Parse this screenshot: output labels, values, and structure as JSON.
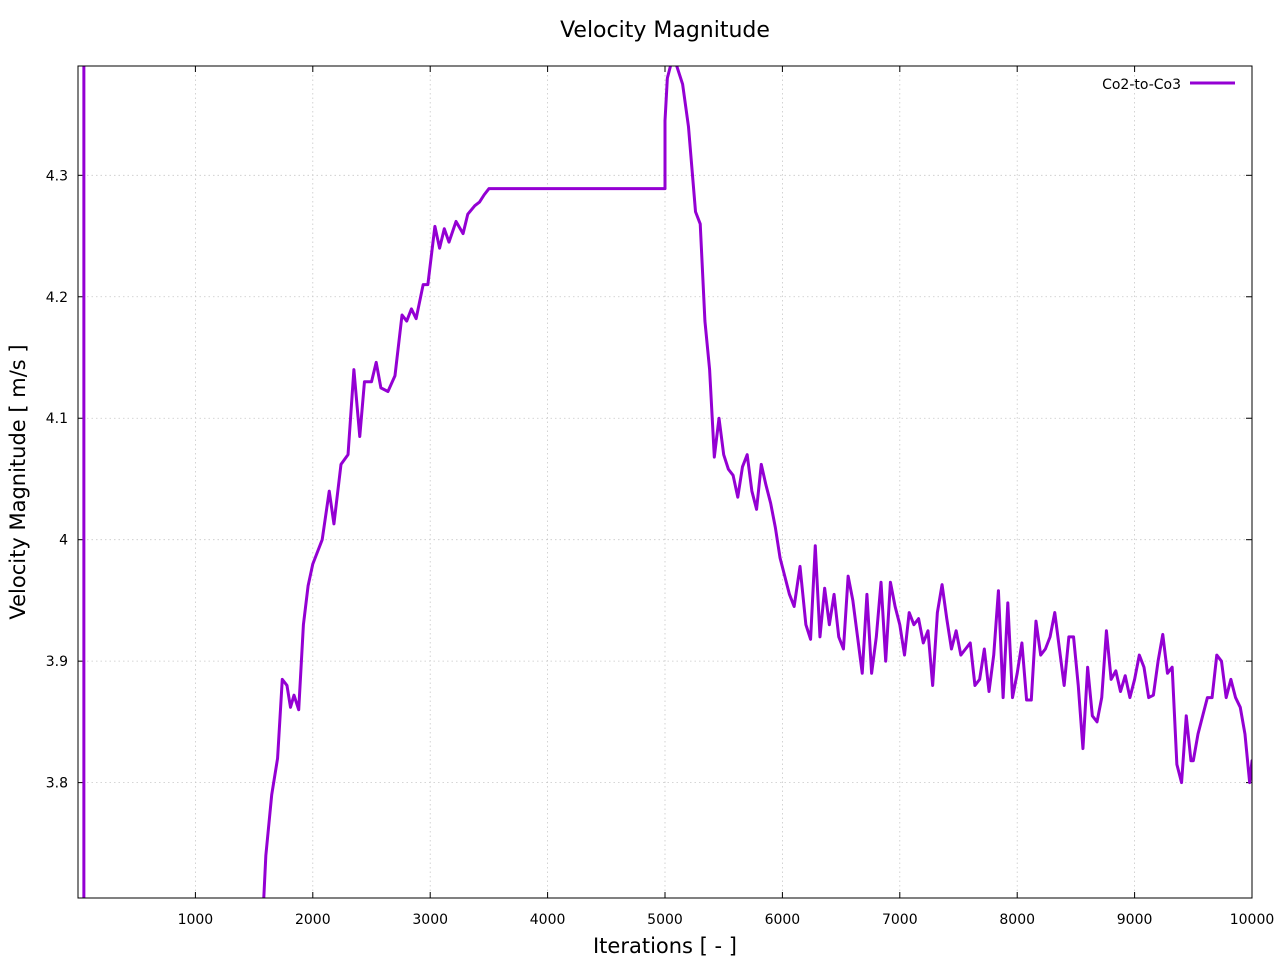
{
  "chart_data": {
    "type": "line",
    "title": "Velocity Magnitude",
    "xlabel": "Iterations [ - ]",
    "ylabel": "Velocity Magnitude [ m/s ]",
    "xlim": [
      0,
      10000
    ],
    "ylim": [
      3.705,
      4.39
    ],
    "xticks": [
      1000,
      2000,
      3000,
      4000,
      5000,
      6000,
      7000,
      8000,
      9000,
      10000
    ],
    "xtick_labels": [
      "1000",
      "2000",
      "3000",
      "4000",
      "5000",
      "6000",
      "7000",
      "8000",
      "9000",
      "10000"
    ],
    "yticks": [
      3.8,
      3.9,
      4.0,
      4.1,
      4.2,
      4.3
    ],
    "ytick_labels": [
      "3.8",
      "3.9",
      "4",
      "4.1",
      "4.2",
      "4.3"
    ],
    "grid": true,
    "legend_position": "top-right",
    "series": [
      {
        "name": "Co2-to-Co3",
        "color": "#9400d3",
        "segments": [
          [
            [
              50,
              3.7
            ],
            [
              50,
              4.39
            ]
          ],
          [
            [
              1580,
              3.7
            ],
            [
              1600,
              3.74
            ],
            [
              1650,
              3.79
            ],
            [
              1700,
              3.82
            ],
            [
              1740,
              3.885
            ],
            [
              1780,
              3.88
            ],
            [
              1810,
              3.862
            ],
            [
              1840,
              3.872
            ],
            [
              1880,
              3.86
            ],
            [
              1920,
              3.93
            ],
            [
              1960,
              3.962
            ],
            [
              2000,
              3.98
            ],
            [
              2080,
              4.0
            ],
            [
              2140,
              4.04
            ],
            [
              2180,
              4.013
            ],
            [
              2240,
              4.062
            ],
            [
              2300,
              4.07
            ],
            [
              2350,
              4.14
            ],
            [
              2400,
              4.085
            ],
            [
              2440,
              4.13
            ],
            [
              2500,
              4.13
            ],
            [
              2540,
              4.146
            ],
            [
              2580,
              4.125
            ],
            [
              2640,
              4.122
            ],
            [
              2700,
              4.135
            ],
            [
              2760,
              4.185
            ],
            [
              2800,
              4.18
            ],
            [
              2840,
              4.19
            ],
            [
              2880,
              4.182
            ],
            [
              2940,
              4.21
            ],
            [
              2980,
              4.21
            ],
            [
              3040,
              4.258
            ],
            [
              3080,
              4.24
            ],
            [
              3120,
              4.256
            ],
            [
              3160,
              4.245
            ],
            [
              3220,
              4.262
            ],
            [
              3280,
              4.252
            ],
            [
              3320,
              4.268
            ],
            [
              3380,
              4.275
            ],
            [
              3420,
              4.278
            ],
            [
              3460,
              4.284
            ],
            [
              3500,
              4.289
            ],
            [
              5000,
              4.289
            ],
            [
              5000,
              4.345
            ],
            [
              5020,
              4.38
            ],
            [
              5060,
              4.395
            ],
            [
              5100,
              4.39
            ],
            [
              5150,
              4.375
            ],
            [
              5200,
              4.34
            ],
            [
              5260,
              4.27
            ],
            [
              5300,
              4.26
            ],
            [
              5340,
              4.18
            ],
            [
              5380,
              4.14
            ],
            [
              5420,
              4.068
            ],
            [
              5460,
              4.1
            ],
            [
              5500,
              4.07
            ],
            [
              5540,
              4.058
            ],
            [
              5580,
              4.053
            ],
            [
              5620,
              4.035
            ],
            [
              5660,
              4.06
            ],
            [
              5700,
              4.07
            ],
            [
              5740,
              4.04
            ],
            [
              5780,
              4.025
            ],
            [
              5820,
              4.062
            ],
            [
              5860,
              4.045
            ],
            [
              5900,
              4.03
            ],
            [
              5940,
              4.01
            ],
            [
              5980,
              3.985
            ],
            [
              6020,
              3.97
            ],
            [
              6060,
              3.955
            ],
            [
              6100,
              3.945
            ],
            [
              6150,
              3.978
            ],
            [
              6200,
              3.93
            ],
            [
              6240,
              3.918
            ],
            [
              6280,
              3.995
            ],
            [
              6320,
              3.92
            ],
            [
              6360,
              3.96
            ],
            [
              6400,
              3.93
            ],
            [
              6440,
              3.955
            ],
            [
              6480,
              3.92
            ],
            [
              6520,
              3.91
            ],
            [
              6560,
              3.97
            ],
            [
              6600,
              3.95
            ],
            [
              6640,
              3.92
            ],
            [
              6680,
              3.89
            ],
            [
              6720,
              3.955
            ],
            [
              6760,
              3.89
            ],
            [
              6800,
              3.92
            ],
            [
              6840,
              3.965
            ],
            [
              6880,
              3.9
            ],
            [
              6920,
              3.965
            ],
            [
              6960,
              3.945
            ],
            [
              7000,
              3.93
            ],
            [
              7040,
              3.905
            ],
            [
              7080,
              3.94
            ],
            [
              7120,
              3.93
            ],
            [
              7160,
              3.935
            ],
            [
              7200,
              3.915
            ],
            [
              7240,
              3.925
            ],
            [
              7280,
              3.88
            ],
            [
              7320,
              3.94
            ],
            [
              7360,
              3.963
            ],
            [
              7400,
              3.935
            ],
            [
              7440,
              3.91
            ],
            [
              7480,
              3.925
            ],
            [
              7520,
              3.905
            ],
            [
              7560,
              3.91
            ],
            [
              7600,
              3.915
            ],
            [
              7640,
              3.88
            ],
            [
              7680,
              3.885
            ],
            [
              7720,
              3.91
            ],
            [
              7760,
              3.875
            ],
            [
              7800,
              3.905
            ],
            [
              7840,
              3.958
            ],
            [
              7880,
              3.87
            ],
            [
              7920,
              3.948
            ],
            [
              7960,
              3.87
            ],
            [
              8000,
              3.89
            ],
            [
              8040,
              3.915
            ],
            [
              8080,
              3.868
            ],
            [
              8120,
              3.868
            ],
            [
              8160,
              3.933
            ],
            [
              8200,
              3.905
            ],
            [
              8240,
              3.91
            ],
            [
              8280,
              3.92
            ],
            [
              8320,
              3.94
            ],
            [
              8360,
              3.91
            ],
            [
              8400,
              3.88
            ],
            [
              8440,
              3.92
            ],
            [
              8480,
              3.92
            ],
            [
              8520,
              3.88
            ],
            [
              8560,
              3.828
            ],
            [
              8600,
              3.895
            ],
            [
              8640,
              3.855
            ],
            [
              8680,
              3.85
            ],
            [
              8720,
              3.87
            ],
            [
              8760,
              3.925
            ],
            [
              8800,
              3.885
            ],
            [
              8840,
              3.892
            ],
            [
              8880,
              3.875
            ],
            [
              8920,
              3.888
            ],
            [
              8960,
              3.87
            ],
            [
              9000,
              3.885
            ],
            [
              9040,
              3.905
            ],
            [
              9080,
              3.895
            ],
            [
              9120,
              3.87
            ],
            [
              9160,
              3.872
            ],
            [
              9200,
              3.9
            ],
            [
              9240,
              3.922
            ],
            [
              9280,
              3.89
            ],
            [
              9320,
              3.895
            ],
            [
              9360,
              3.815
            ],
            [
              9400,
              3.8
            ],
            [
              9440,
              3.855
            ],
            [
              9480,
              3.818
            ],
            [
              9500,
              3.818
            ],
            [
              9540,
              3.84
            ],
            [
              9580,
              3.855
            ],
            [
              9620,
              3.87
            ],
            [
              9660,
              3.87
            ],
            [
              9700,
              3.905
            ],
            [
              9740,
              3.9
            ],
            [
              9780,
              3.87
            ],
            [
              9820,
              3.885
            ],
            [
              9860,
              3.87
            ],
            [
              9900,
              3.862
            ],
            [
              9940,
              3.84
            ],
            [
              9980,
              3.8
            ],
            [
              10000,
              3.818
            ]
          ]
        ]
      }
    ]
  }
}
